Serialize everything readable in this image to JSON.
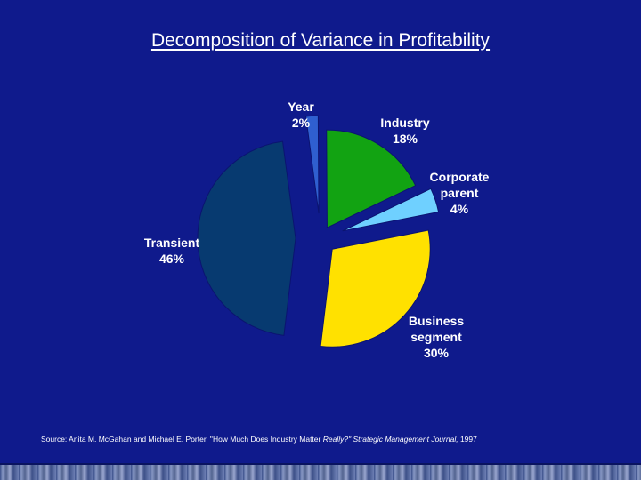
{
  "slide": {
    "title": "Decomposition of Variance in Profitability",
    "source": {
      "prefix": "Source:  Anita M. McGahan and Michael E. Porter, \"How Much Does Industry Matter ",
      "italic_1": "Really?\"  Strategic Management Journal,",
      "suffix": " 1997"
    }
  },
  "colors": {
    "background": "#0f1a8c",
    "text": "#ffffff"
  },
  "chart_data": {
    "type": "pie",
    "title": "Decomposition of Variance in Profitability",
    "exploded": true,
    "series": [
      {
        "name": "Year",
        "value": 2,
        "label_lines": [
          "Year",
          "2%"
        ],
        "color": "#2f5fd0"
      },
      {
        "name": "Industry",
        "value": 18,
        "label_lines": [
          "Industry",
          "18%"
        ],
        "color": "#12a312"
      },
      {
        "name": "Corporate parent",
        "value": 4,
        "label_lines": [
          "Corporate",
          "parent",
          "4%"
        ],
        "color": "#6fd0ff"
      },
      {
        "name": "Business segment",
        "value": 30,
        "label_lines": [
          "Business",
          "segment",
          "30%"
        ],
        "color": "#ffe100"
      },
      {
        "name": "Transient",
        "value": 46,
        "label_lines": [
          "Transient",
          "46%"
        ],
        "color": "#073a70"
      }
    ]
  }
}
